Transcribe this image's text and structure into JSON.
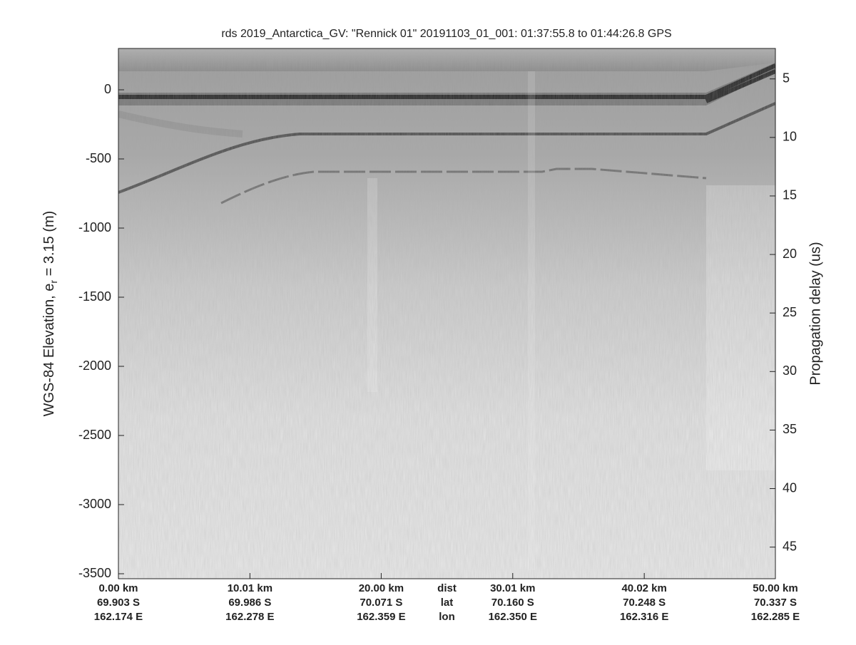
{
  "chart_data": {
    "type": "radargram",
    "title": "rds 2019_Antarctica_GV: \"Rennick 01\"  20191103_01_001: 01:37:55.8 to 01:44:26.8 GPS",
    "ylabel": {
      "text": "WGS-84 Elevation, e",
      "sub": "r",
      "rest": " = 3.15 (m)"
    },
    "y2label": "Propagation delay (us)",
    "ylim": [
      -3536,
      299
    ],
    "yticks": [
      0,
      -500,
      -1000,
      -1500,
      -2000,
      -2500,
      -3000,
      -3500
    ],
    "y2lim": [
      47.7,
      2.4
    ],
    "y2ticks": [
      5,
      10,
      15,
      20,
      25,
      30,
      35,
      40,
      45
    ],
    "xlim": [
      0,
      50
    ],
    "xticks": [
      {
        "value": 0,
        "label": "0.00 km"
      },
      {
        "value": 10.01,
        "label": "10.01 km"
      },
      {
        "value": 20,
        "label": "20.00 km"
      },
      {
        "value": 30.01,
        "label": "30.01 km"
      },
      {
        "value": 40.02,
        "label": "40.02 km"
      },
      {
        "value": 50,
        "label": "50.00 km"
      }
    ],
    "lat": [
      "69.903 S",
      "69.986 S",
      "70.071 S",
      "70.160 S",
      "70.248 S",
      "70.337 S"
    ],
    "lon": [
      "162.174 E",
      "162.278 E",
      "162.359 E",
      "162.350 E",
      "162.316 E",
      "162.285 E"
    ],
    "row_labels": [
      "dist",
      "lat",
      "lon"
    ],
    "row_label_x": 25
  }
}
